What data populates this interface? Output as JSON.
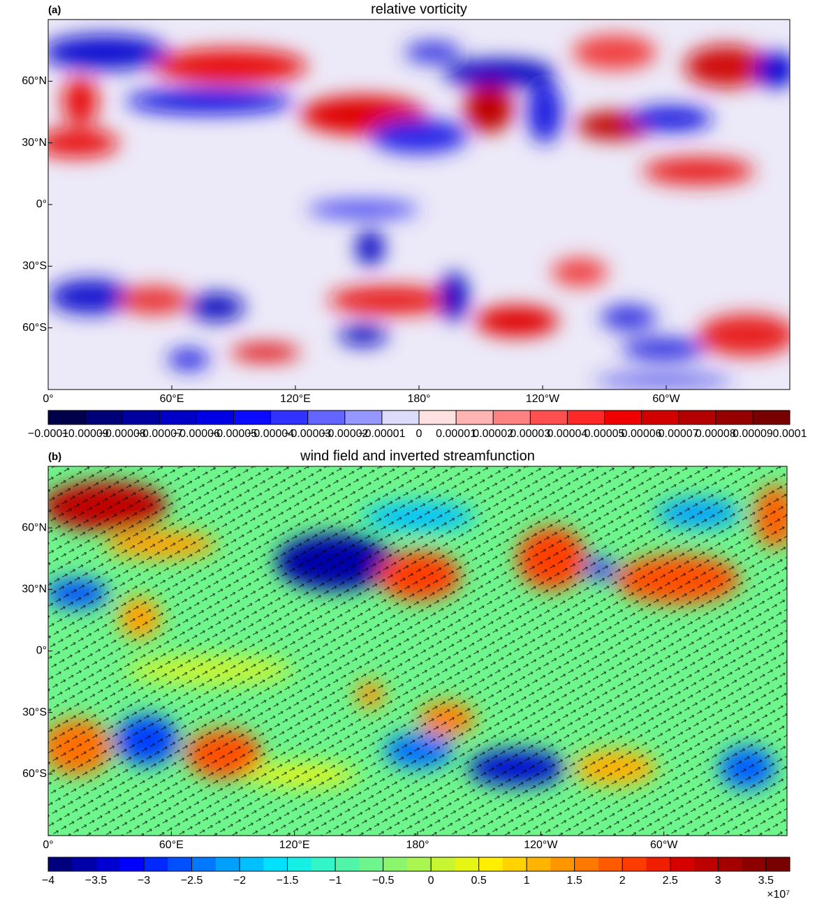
{
  "panels": [
    {
      "label": "(a)",
      "title": "relative vorticity",
      "lat_labels": [
        "60°N",
        "30°N",
        "0°",
        "30°S",
        "60°S"
      ],
      "lon_labels": [
        "0°",
        "60°E",
        "120°E",
        "180°",
        "120°W",
        "60°W"
      ],
      "colorbar": {
        "labels": [
          "−0.0001",
          "−0.00009",
          "−0.00008",
          "−0.00007",
          "−0.00006",
          "−0.00005",
          "−0.00004",
          "−0.00003",
          "−0.00002",
          "−0.00001",
          "0",
          "0.00001",
          "0.00002",
          "0.00003",
          "0.00004",
          "0.00005",
          "0.00006",
          "0.00007",
          "0.00008",
          "0.00009",
          "0.0001"
        ],
        "colors": [
          "#00004b",
          "#000078",
          "#0000a0",
          "#0000c8",
          "#0000e6",
          "#0a0aff",
          "#3232ff",
          "#6464ff",
          "#9696ff",
          "#dcdcfa",
          "#ffe1e1",
          "#ffb4b4",
          "#ff8282",
          "#ff5050",
          "#ff2828",
          "#f00000",
          "#d20000",
          "#b40000",
          "#960000",
          "#780000"
        ]
      }
    },
    {
      "label": "(b)",
      "title": "wind field and inverted streamfunction",
      "lat_labels": [
        "60°N",
        "30°N",
        "0°",
        "30°S",
        "60°S"
      ],
      "lon_labels": [
        "0°",
        "60°E",
        "120°E",
        "180°",
        "120°W",
        "60°W"
      ],
      "colorbar": {
        "labels": [
          "−4",
          "−3.5",
          "−3",
          "−2.5",
          "−2",
          "−1.5",
          "−1",
          "−0.5",
          "0",
          "0.5",
          "1",
          "1.5",
          "2",
          "2.5",
          "3",
          "3.5"
        ],
        "multiplier": "×10⁷",
        "colors": [
          "#00007f",
          "#0000a8",
          "#0000d2",
          "#0000ff",
          "#0028ff",
          "#0050ff",
          "#0078ff",
          "#00a0ff",
          "#00c0ff",
          "#00e0ff",
          "#14f0e6",
          "#32f5c8",
          "#50f5aa",
          "#6ef58c",
          "#8cf56e",
          "#aaf550",
          "#c8f532",
          "#e6f514",
          "#ffee00",
          "#ffd200",
          "#ffb400",
          "#ff9600",
          "#ff7800",
          "#ff5a00",
          "#ff3c00",
          "#f01e00",
          "#d70000",
          "#be0000",
          "#a50000",
          "#8c0000",
          "#780000"
        ]
      }
    }
  ]
}
